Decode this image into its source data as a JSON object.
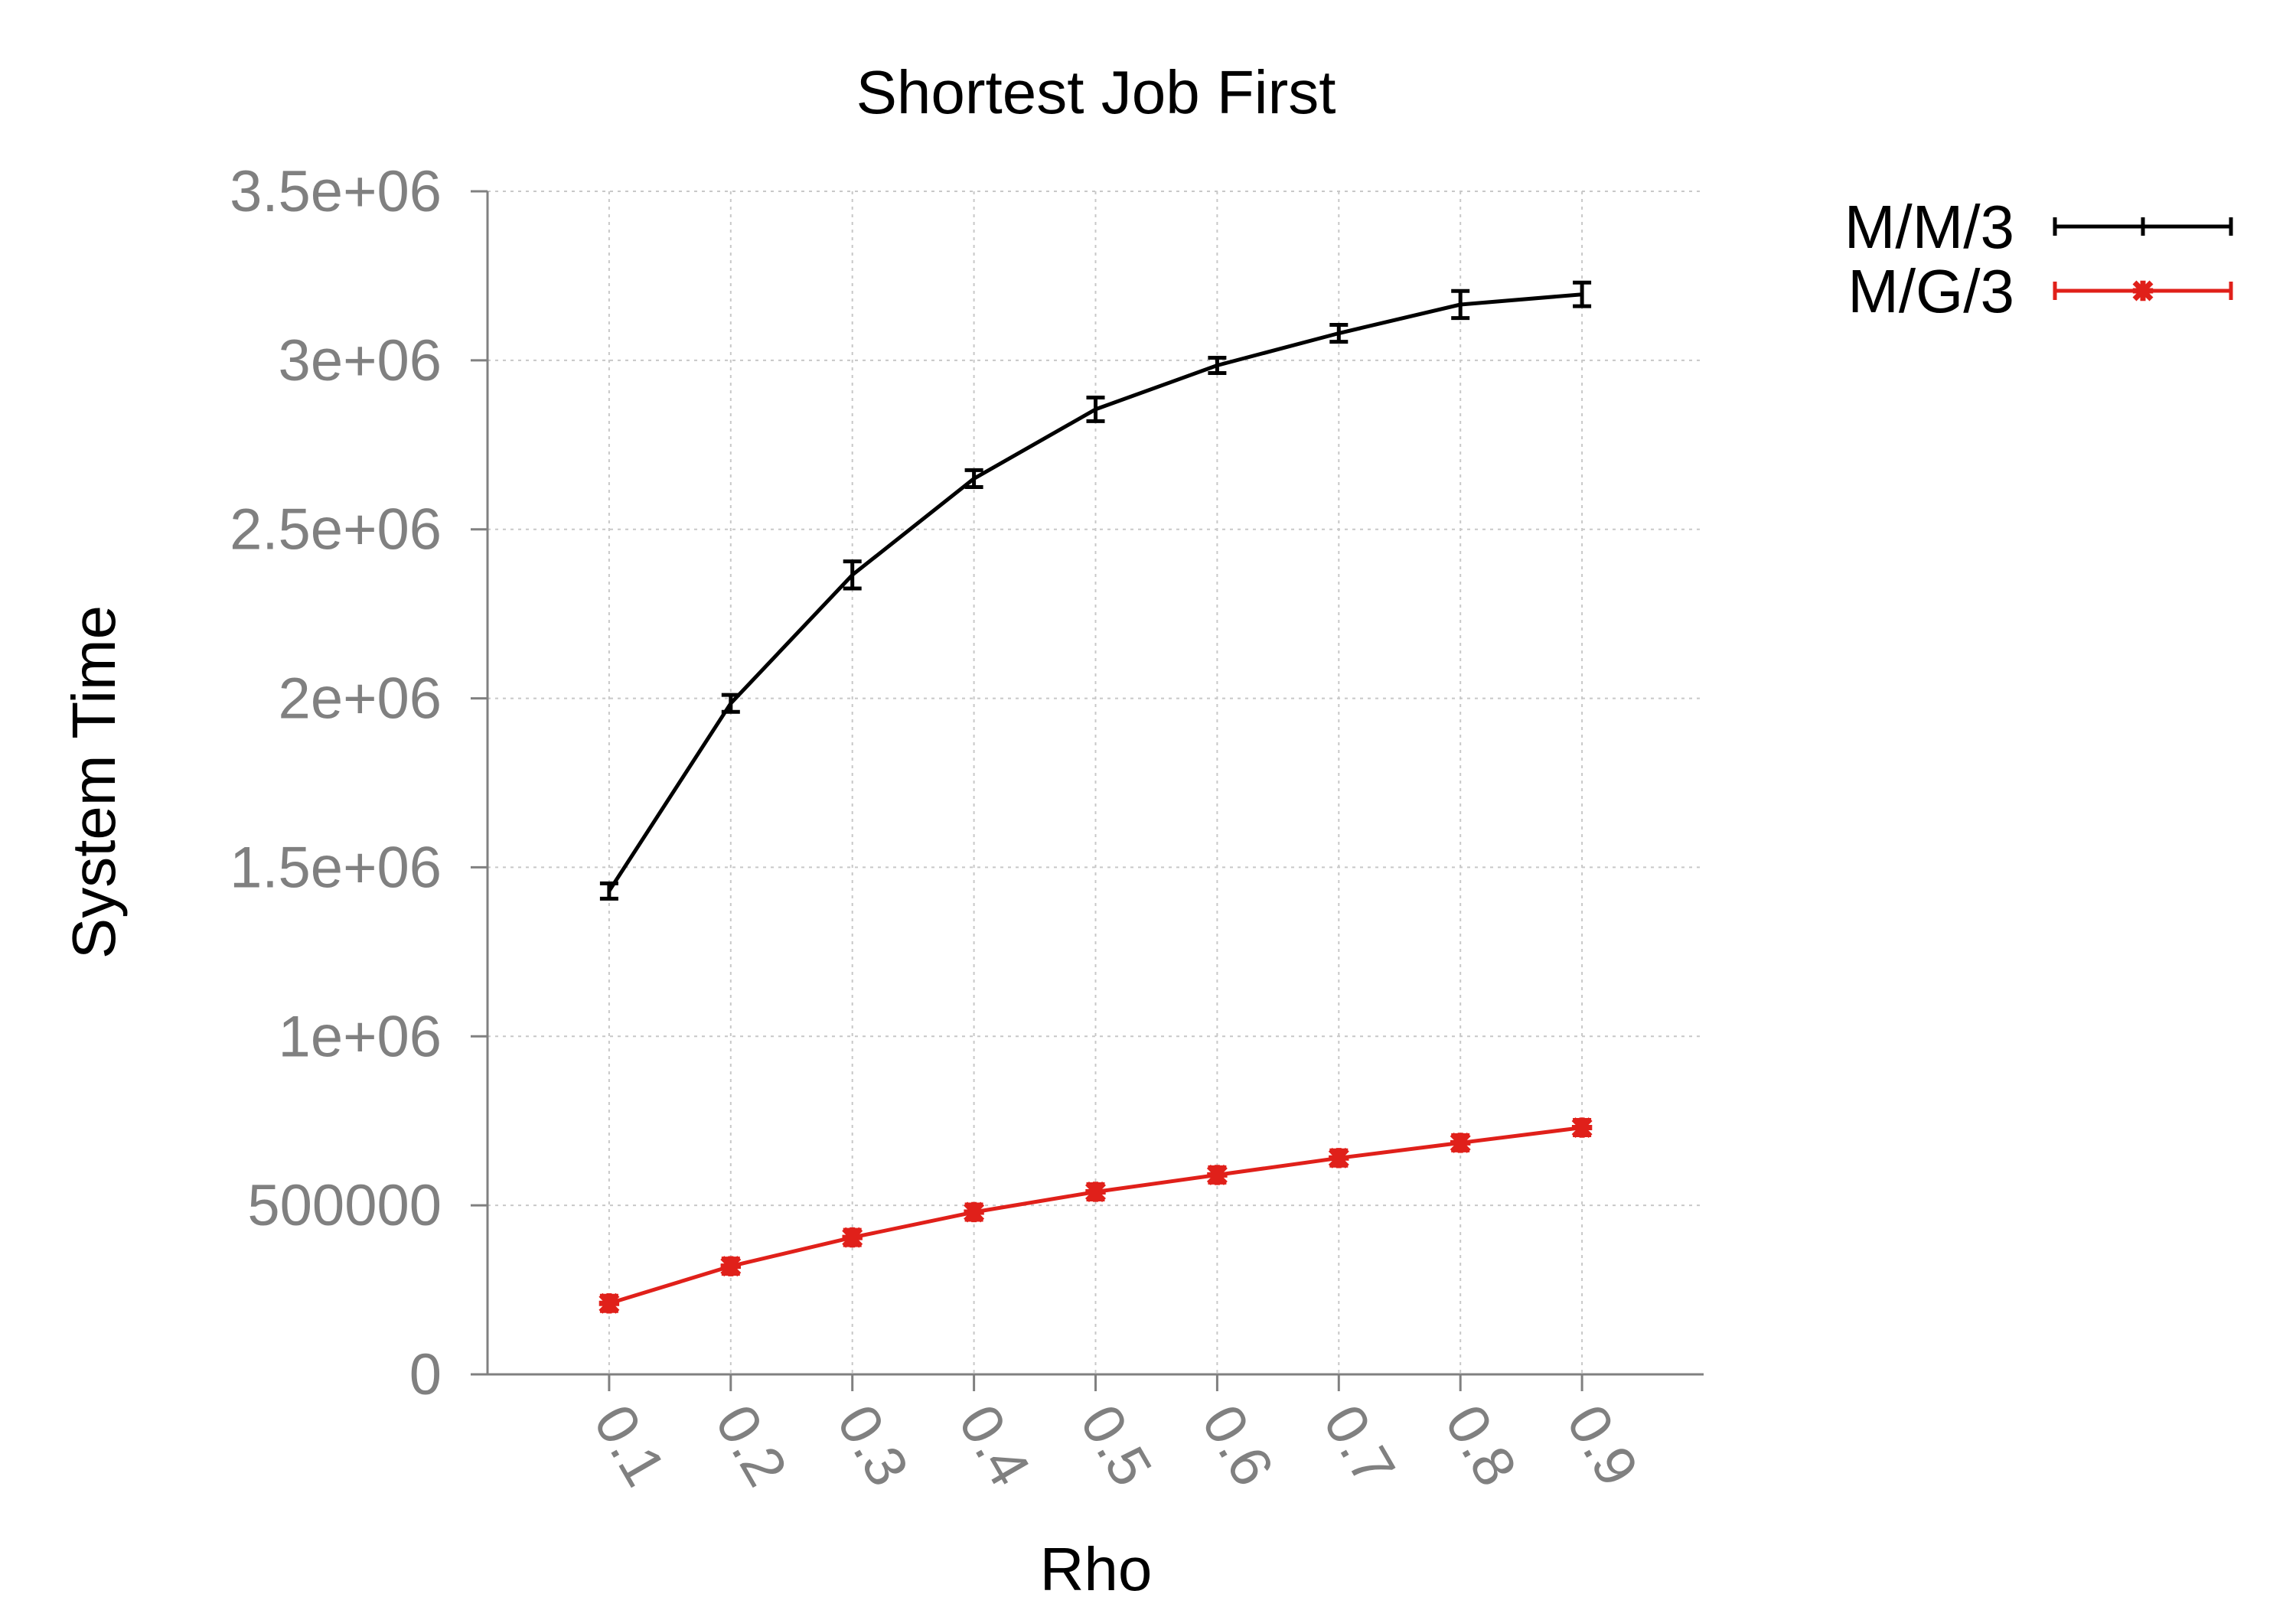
{
  "chart_data": {
    "type": "line",
    "title": "Shortest Job First",
    "xlabel": "Rho",
    "ylabel": "System Time",
    "categories": [
      "0.1",
      "0.2",
      "0.3",
      "0.4",
      "0.5",
      "0.6",
      "0.7",
      "0.8",
      "0.9"
    ],
    "x": [
      0.1,
      0.2,
      0.3,
      0.4,
      0.5,
      0.6,
      0.7,
      0.8,
      0.9
    ],
    "ylim": [
      0,
      3500000
    ],
    "yticks": [
      0,
      500000,
      1000000,
      1500000,
      2000000,
      2500000,
      3000000,
      3500000
    ],
    "ytick_labels": [
      "0",
      "500000",
      "1e+06",
      "1.5e+06",
      "2e+06",
      "2.5e+06",
      "3e+06",
      "3.5e+06"
    ],
    "grid": true,
    "legend_position": "top-right, outside plot",
    "series": [
      {
        "name": "M/M/3",
        "color": "#000000",
        "marker": "plus",
        "values": [
          1430000,
          1985000,
          2365000,
          2650000,
          2855000,
          2985000,
          3080000,
          3165000,
          3195000
        ],
        "errors": [
          20000,
          25000,
          40000,
          25000,
          35000,
          15000,
          25000,
          40000,
          35000
        ]
      },
      {
        "name": "M/G/3",
        "color": "#e0201a",
        "marker": "star",
        "values": [
          210000,
          320000,
          405000,
          480000,
          540000,
          590000,
          640000,
          685000,
          730000
        ],
        "errors": [
          10000,
          10000,
          10000,
          10000,
          10000,
          10000,
          10000,
          10000,
          10000
        ]
      }
    ]
  }
}
